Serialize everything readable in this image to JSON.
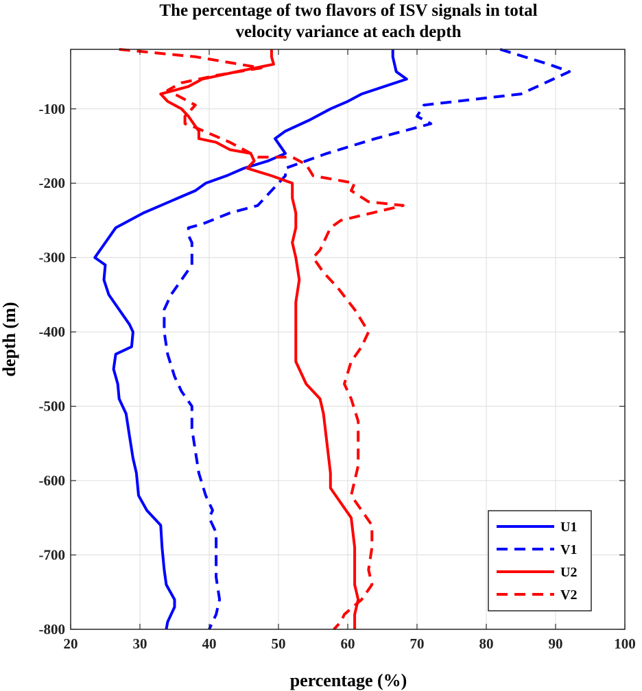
{
  "chart_data": {
    "type": "line",
    "title": [
      "The percentage of two flavors of ISV signals in total",
      "velocity variance at each depth"
    ],
    "xlabel": "percentage (%)",
    "ylabel": "depth (m)",
    "xlim": [
      20,
      100
    ],
    "ylim": [
      -800,
      -20
    ],
    "xticks": [
      "20",
      "30",
      "40",
      "50",
      "60",
      "70",
      "80",
      "90",
      "100"
    ],
    "yticks": [
      "-100",
      "-200",
      "-300",
      "-400",
      "-500",
      "-600",
      "-700",
      "-800"
    ],
    "grid": true,
    "legend_position": "bottom-right",
    "series": [
      {
        "name": "U1",
        "color": "#0000ff",
        "dash": "solid",
        "points": [
          [
            66.5,
            -20
          ],
          [
            66.5,
            -30
          ],
          [
            67,
            -50
          ],
          [
            68.5,
            -60
          ],
          [
            62,
            -80
          ],
          [
            60,
            -90
          ],
          [
            57.5,
            -100
          ],
          [
            54.5,
            -115
          ],
          [
            51,
            -130
          ],
          [
            49.5,
            -140
          ],
          [
            51,
            -160
          ],
          [
            48.5,
            -170
          ],
          [
            45,
            -180
          ],
          [
            42.5,
            -190
          ],
          [
            39.5,
            -200
          ],
          [
            38,
            -210
          ],
          [
            35.5,
            -220
          ],
          [
            33,
            -230
          ],
          [
            30.5,
            -240
          ],
          [
            28.5,
            -250
          ],
          [
            26.5,
            -260
          ],
          [
            25,
            -280
          ],
          [
            23.5,
            -300
          ],
          [
            25,
            -310
          ],
          [
            24.8,
            -330
          ],
          [
            25.5,
            -350
          ],
          [
            27,
            -370
          ],
          [
            28.5,
            -390
          ],
          [
            29,
            -400
          ],
          [
            28.8,
            -420
          ],
          [
            26.5,
            -430
          ],
          [
            26.2,
            -450
          ],
          [
            26.8,
            -470
          ],
          [
            27,
            -490
          ],
          [
            28,
            -510
          ],
          [
            28.5,
            -540
          ],
          [
            29,
            -570
          ],
          [
            29.5,
            -590
          ],
          [
            29.8,
            -620
          ],
          [
            31,
            -640
          ],
          [
            33,
            -660
          ],
          [
            33.2,
            -690
          ],
          [
            33.5,
            -720
          ],
          [
            33.8,
            -740
          ],
          [
            35,
            -760
          ],
          [
            35,
            -770
          ],
          [
            34,
            -790
          ],
          [
            33.8,
            -800
          ]
        ]
      },
      {
        "name": "V1",
        "color": "#0000ff",
        "dash": "dashed",
        "points": [
          [
            82,
            -20
          ],
          [
            89,
            -40
          ],
          [
            92,
            -50
          ],
          [
            85,
            -80
          ],
          [
            71,
            -95
          ],
          [
            70,
            -110
          ],
          [
            72,
            -120
          ],
          [
            64,
            -140
          ],
          [
            57,
            -160
          ],
          [
            51,
            -180
          ],
          [
            51,
            -190
          ],
          [
            50,
            -200
          ],
          [
            47,
            -230
          ],
          [
            43,
            -240
          ],
          [
            39,
            -255
          ],
          [
            37,
            -260
          ],
          [
            37,
            -270
          ],
          [
            37.5,
            -280
          ],
          [
            37.5,
            -290
          ],
          [
            37.5,
            -310
          ],
          [
            36,
            -330
          ],
          [
            34.5,
            -350
          ],
          [
            33.5,
            -370
          ],
          [
            33.5,
            -400
          ],
          [
            34,
            -430
          ],
          [
            35,
            -460
          ],
          [
            36,
            -480
          ],
          [
            37.5,
            -500
          ],
          [
            37.5,
            -530
          ],
          [
            38,
            -560
          ],
          [
            38.5,
            -590
          ],
          [
            39.5,
            -620
          ],
          [
            40.5,
            -640
          ],
          [
            40,
            -650
          ],
          [
            41,
            -670
          ],
          [
            41,
            -690
          ],
          [
            41,
            -710
          ],
          [
            41,
            -730
          ],
          [
            41.5,
            -760
          ],
          [
            41,
            -780
          ],
          [
            40.5,
            -790
          ],
          [
            40,
            -800
          ]
        ]
      },
      {
        "name": "U2",
        "color": "#ff0000",
        "dash": "solid",
        "points": [
          [
            49,
            -20
          ],
          [
            49,
            -30
          ],
          [
            49.3,
            -40
          ],
          [
            44,
            -50
          ],
          [
            39,
            -60
          ],
          [
            37,
            -70
          ],
          [
            33,
            -80
          ],
          [
            34,
            -90
          ],
          [
            36,
            -100
          ],
          [
            37,
            -110
          ],
          [
            38.5,
            -130
          ],
          [
            38.5,
            -140
          ],
          [
            41,
            -145
          ],
          [
            43,
            -155
          ],
          [
            46,
            -160
          ],
          [
            46.5,
            -170
          ],
          [
            45.5,
            -180
          ],
          [
            49,
            -190
          ],
          [
            52,
            -200
          ],
          [
            52,
            -220
          ],
          [
            52.5,
            -240
          ],
          [
            52.5,
            -260
          ],
          [
            52,
            -280
          ],
          [
            52.5,
            -300
          ],
          [
            53,
            -330
          ],
          [
            52.5,
            -360
          ],
          [
            52.5,
            -400
          ],
          [
            52.5,
            -420
          ],
          [
            52.5,
            -440
          ],
          [
            54,
            -470
          ],
          [
            56,
            -490
          ],
          [
            56.5,
            -510
          ],
          [
            57,
            -550
          ],
          [
            57.5,
            -590
          ],
          [
            57.5,
            -610
          ],
          [
            59,
            -630
          ],
          [
            60.5,
            -650
          ],
          [
            61,
            -690
          ],
          [
            61,
            -720
          ],
          [
            61,
            -740
          ],
          [
            61.5,
            -760
          ],
          [
            61,
            -780
          ],
          [
            61,
            -800
          ]
        ]
      },
      {
        "name": "V2",
        "color": "#ff0000",
        "dash": "dashed",
        "points": [
          [
            27,
            -20
          ],
          [
            38,
            -30
          ],
          [
            47.5,
            -45
          ],
          [
            41,
            -55
          ],
          [
            36,
            -65
          ],
          [
            34,
            -75
          ],
          [
            36,
            -85
          ],
          [
            38,
            -95
          ],
          [
            37,
            -105
          ],
          [
            36.5,
            -110
          ],
          [
            36.5,
            -120
          ],
          [
            38,
            -125
          ],
          [
            43,
            -145
          ],
          [
            46,
            -160
          ],
          [
            47,
            -165
          ],
          [
            52,
            -165
          ],
          [
            54,
            -175
          ],
          [
            55,
            -190
          ],
          [
            61,
            -200
          ],
          [
            60.5,
            -210
          ],
          [
            63,
            -225
          ],
          [
            68,
            -230
          ],
          [
            59,
            -250
          ],
          [
            57.5,
            -260
          ],
          [
            57,
            -270
          ],
          [
            56,
            -290
          ],
          [
            55,
            -300
          ],
          [
            56.5,
            -320
          ],
          [
            58.5,
            -340
          ],
          [
            61,
            -370
          ],
          [
            63,
            -400
          ],
          [
            62,
            -420
          ],
          [
            60.5,
            -440
          ],
          [
            59.5,
            -470
          ],
          [
            60.5,
            -490
          ],
          [
            61.5,
            -520
          ],
          [
            61.5,
            -550
          ],
          [
            61.5,
            -580
          ],
          [
            61,
            -600
          ],
          [
            60.5,
            -620
          ],
          [
            62,
            -640
          ],
          [
            63.5,
            -660
          ],
          [
            63.5,
            -690
          ],
          [
            63,
            -720
          ],
          [
            63.5,
            -740
          ],
          [
            62,
            -760
          ],
          [
            59.5,
            -780
          ],
          [
            59,
            -790
          ],
          [
            58,
            -800
          ]
        ]
      }
    ]
  }
}
